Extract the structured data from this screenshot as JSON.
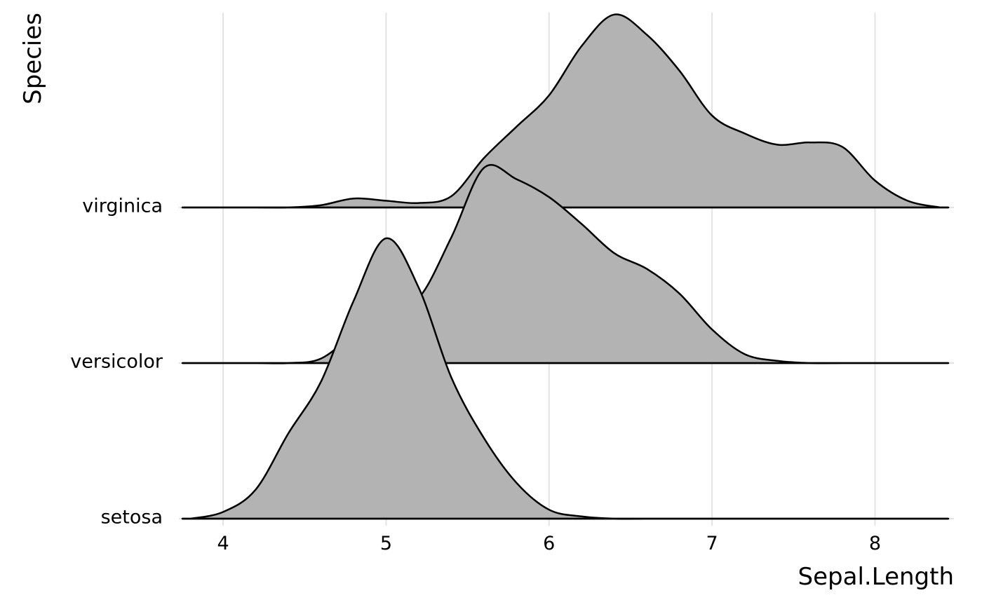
{
  "chart_data": {
    "type": "ridgeline",
    "x_label": "Sepal.Length",
    "y_label": "Species",
    "categories": [
      "setosa",
      "versicolor",
      "virginica"
    ],
    "x": [
      3.8,
      4.0,
      4.2,
      4.4,
      4.6,
      4.8,
      5.0,
      5.2,
      5.4,
      5.6,
      5.8,
      6.0,
      6.2,
      6.4,
      6.6,
      6.8,
      7.0,
      7.2,
      7.4,
      7.6,
      7.8,
      8.0,
      8.2,
      8.4
    ],
    "series": [
      {
        "name": "setosa",
        "color": "#b3b3b3",
        "values": [
          0,
          0.03,
          0.13,
          0.38,
          0.61,
          0.97,
          1.25,
          1.03,
          0.63,
          0.36,
          0.16,
          0.04,
          0.01,
          0,
          0,
          0,
          0,
          0,
          0,
          0,
          0,
          0,
          0,
          0
        ]
      },
      {
        "name": "versicolor",
        "color": "#b3b3b3",
        "values": [
          0,
          0,
          0,
          0,
          0.02,
          0.13,
          0.24,
          0.29,
          0.56,
          0.87,
          0.82,
          0.74,
          0.62,
          0.49,
          0.42,
          0.31,
          0.15,
          0.04,
          0.01,
          0,
          0,
          0,
          0,
          0
        ]
      },
      {
        "name": "virginica",
        "color": "#b3b3b3",
        "values": [
          0,
          0,
          0,
          0,
          0.01,
          0.04,
          0.03,
          0.02,
          0.05,
          0.22,
          0.36,
          0.5,
          0.72,
          0.86,
          0.77,
          0.61,
          0.41,
          0.33,
          0.28,
          0.29,
          0.27,
          0.12,
          0.03,
          0
        ]
      }
    ],
    "xlim": [
      3.75,
      8.45
    ],
    "xticks": [
      4,
      5,
      6,
      7,
      8
    ],
    "grid": true
  }
}
